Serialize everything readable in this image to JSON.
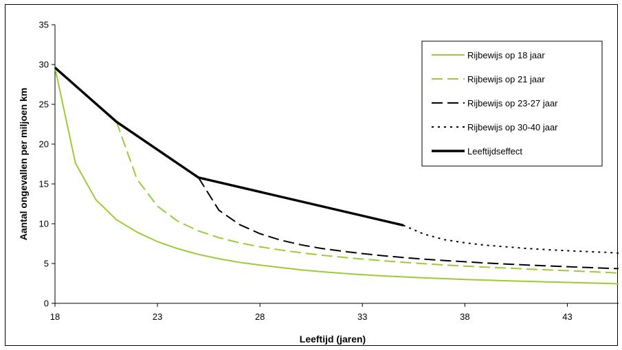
{
  "chart_data": {
    "type": "line",
    "title": "",
    "xlabel": "Leeftijd (jaren)",
    "ylabel": "Aantal ongevallen per miljoen km",
    "xlim": [
      18,
      45.5
    ],
    "ylim": [
      0,
      35
    ],
    "x_ticks": [
      18,
      23,
      28,
      33,
      38,
      43
    ],
    "y_ticks": [
      0,
      5,
      10,
      15,
      20,
      25,
      30,
      35
    ],
    "grid": false,
    "legend_position": "top-right",
    "series": [
      {
        "name": "Rijbewijs op 18 jaar",
        "color": "#99cc33",
        "dash": "solid",
        "x": [
          18,
          19,
          20,
          21,
          22,
          23,
          24,
          25,
          26,
          27,
          28,
          29,
          30,
          31,
          32,
          33,
          34,
          35,
          36,
          37,
          38,
          39,
          40,
          41,
          42,
          43,
          44,
          45,
          45.5
        ],
        "y": [
          29.6,
          17.6,
          13.0,
          10.5,
          8.95,
          7.75,
          6.85,
          6.15,
          5.6,
          5.15,
          4.8,
          4.5,
          4.2,
          3.97,
          3.77,
          3.6,
          3.45,
          3.32,
          3.2,
          3.1,
          3.0,
          2.92,
          2.84,
          2.77,
          2.7,
          2.63,
          2.57,
          2.5,
          2.45
        ]
      },
      {
        "name": "Rijbewijs op 21 jaar",
        "color": "#99cc33",
        "dash": "long-dash",
        "x": [
          21,
          22,
          23,
          24,
          25,
          26,
          27,
          28,
          29,
          30,
          31,
          32,
          33,
          34,
          35,
          36,
          37,
          38,
          39,
          40,
          41,
          42,
          43,
          44,
          45,
          45.5
        ],
        "y": [
          22.8,
          15.6,
          12.2,
          10.3,
          9.1,
          8.25,
          7.6,
          7.1,
          6.7,
          6.35,
          6.05,
          5.8,
          5.55,
          5.35,
          5.15,
          4.98,
          4.82,
          4.68,
          4.55,
          4.43,
          4.31,
          4.2,
          4.1,
          3.99,
          3.88,
          3.8
        ]
      },
      {
        "name": "Rijbewijs op 23-27 jaar",
        "color": "#000000",
        "dash": "long-dash",
        "x": [
          25,
          26,
          27,
          28,
          29,
          30,
          31,
          32,
          33,
          34,
          35,
          36,
          37,
          38,
          39,
          40,
          41,
          42,
          43,
          44,
          45,
          45.5
        ],
        "y": [
          15.8,
          11.7,
          9.9,
          8.75,
          7.95,
          7.35,
          6.9,
          6.55,
          6.25,
          5.98,
          5.75,
          5.55,
          5.38,
          5.22,
          5.07,
          4.94,
          4.82,
          4.71,
          4.6,
          4.5,
          4.4,
          4.36
        ]
      },
      {
        "name": "Rijbewijs op 30-40 jaar",
        "color": "#000000",
        "dash": "dotted",
        "x": [
          35,
          36,
          37,
          38,
          39,
          40,
          41,
          42,
          43,
          44,
          45,
          45.5
        ],
        "y": [
          9.8,
          8.7,
          8.0,
          7.6,
          7.3,
          7.1,
          6.9,
          6.75,
          6.6,
          6.5,
          6.4,
          6.3
        ]
      },
      {
        "name": "Leeftijdseffect",
        "color": "#000000",
        "dash": "thick",
        "x": [
          18,
          21,
          25,
          35
        ],
        "y": [
          29.6,
          22.8,
          15.8,
          9.8
        ]
      }
    ]
  }
}
